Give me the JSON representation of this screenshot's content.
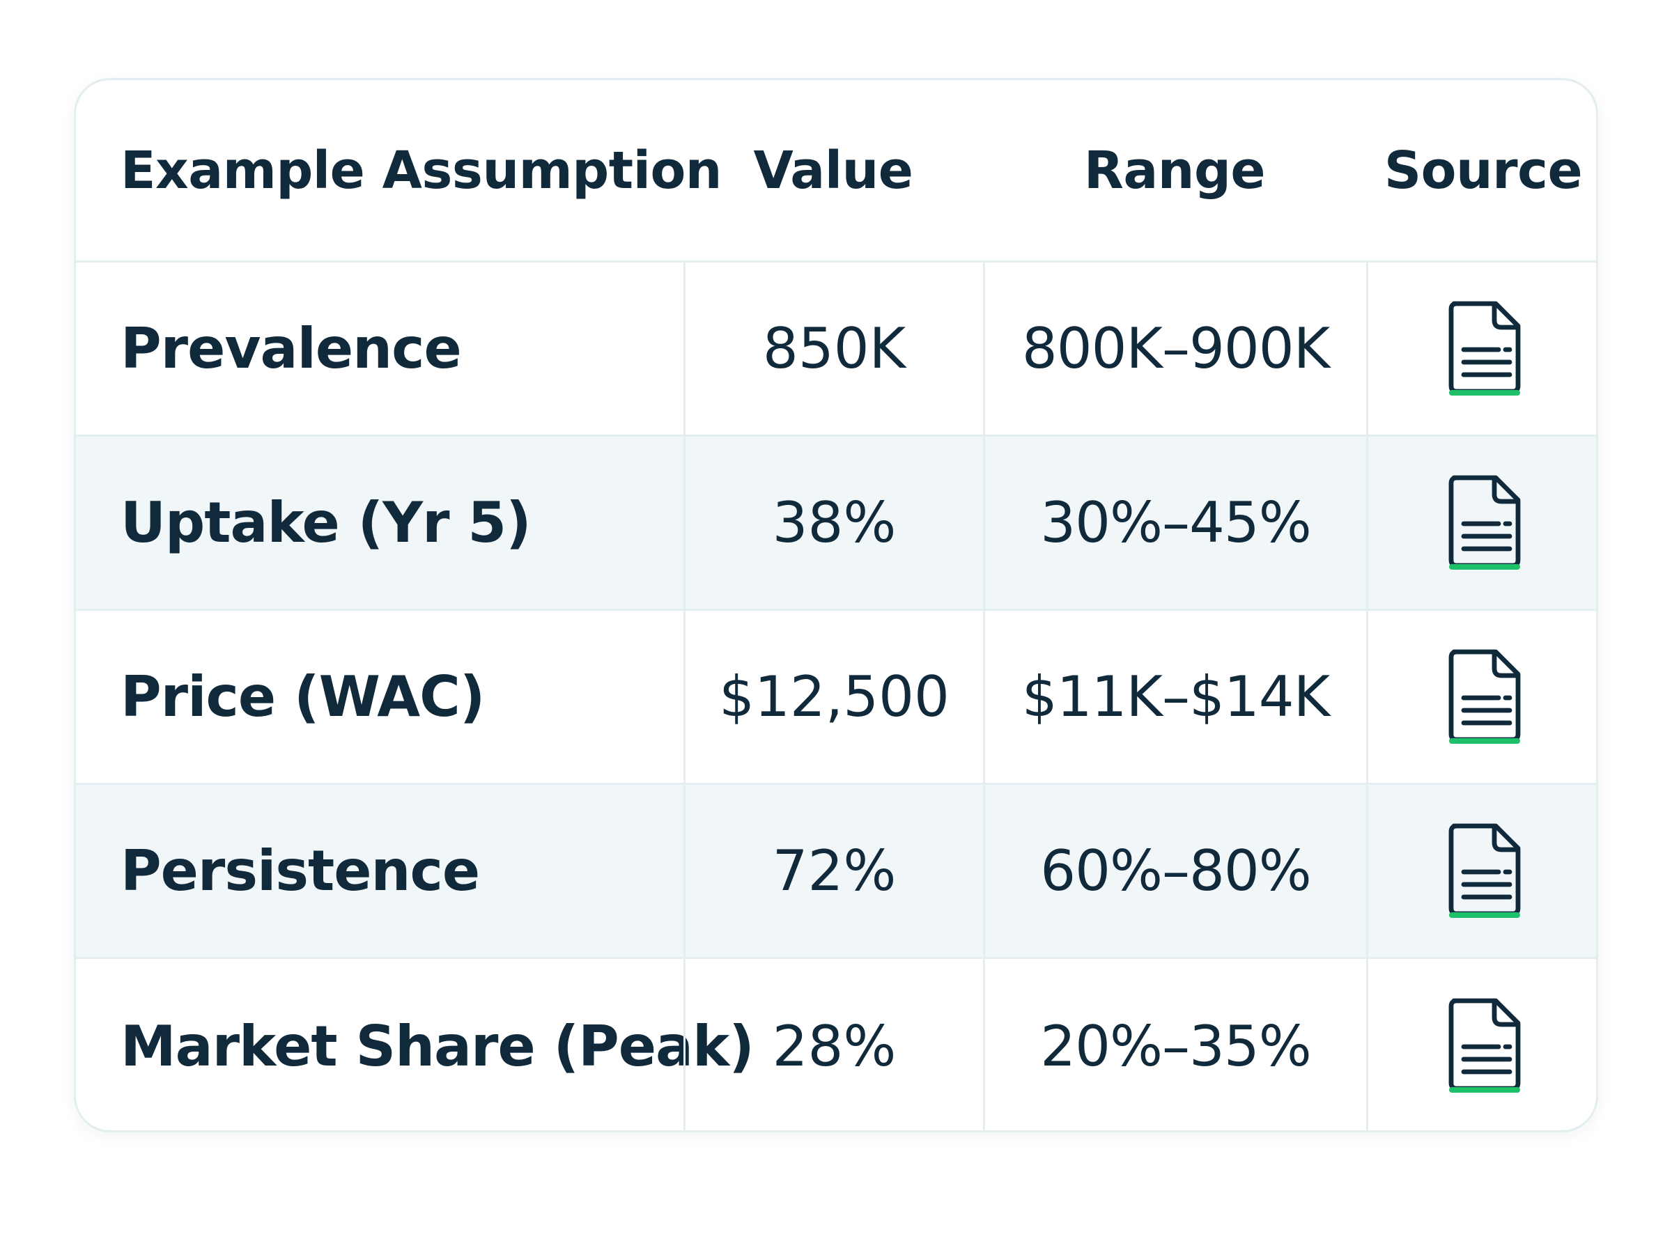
{
  "table": {
    "headers": {
      "assumption": "Example Assumption",
      "value": "Value",
      "range": "Range",
      "source": "Source"
    },
    "rows": [
      {
        "assumption": "Prevalence",
        "value": "850K",
        "range": "800K–900K",
        "source_icon": "document-icon"
      },
      {
        "assumption": "Uptake (Yr 5)",
        "value": "38%",
        "range": "30%–45%",
        "source_icon": "document-icon"
      },
      {
        "assumption": "Price (WAC)",
        "value": "$12,500",
        "range": "$11K–$14K",
        "source_icon": "document-icon"
      },
      {
        "assumption": "Persistence",
        "value": "72%",
        "range": "60%–80%",
        "source_icon": "document-icon"
      },
      {
        "assumption": "Market Share (Peak)",
        "value": "28%",
        "range": "20%–35%",
        "source_icon": "document-icon"
      }
    ]
  },
  "colors": {
    "text": "#10293b",
    "accent": "#1fc06a",
    "border": "#e3eef0",
    "row_shade": "#f1f6f8"
  }
}
